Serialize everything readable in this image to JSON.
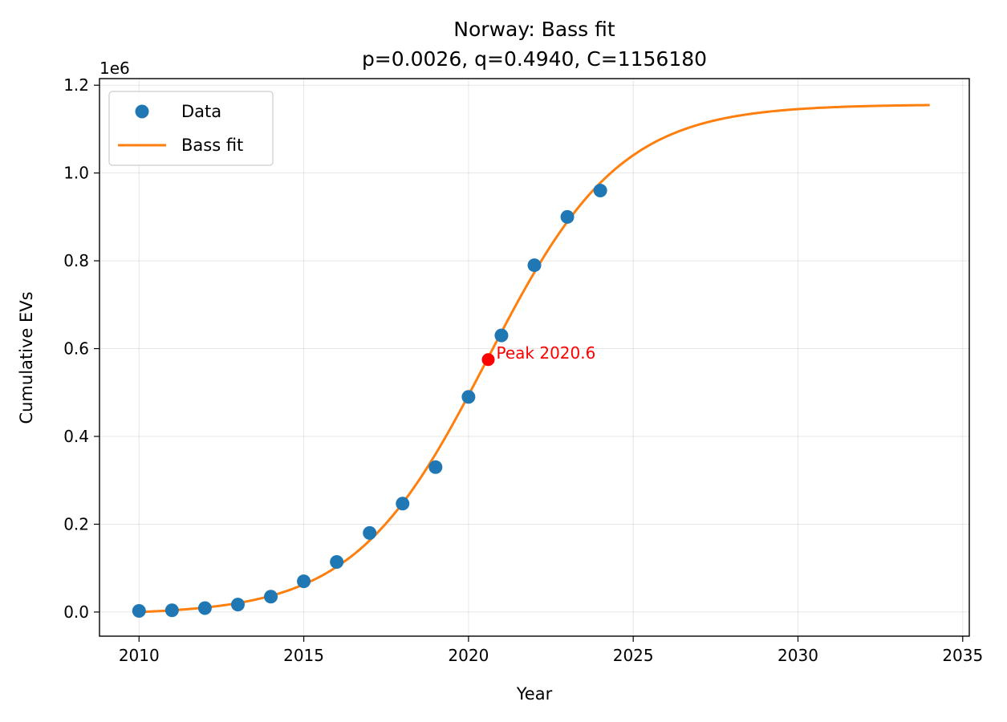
{
  "chart_data": {
    "type": "scatter",
    "title": "Norway: Bass fit",
    "subtitle": "p=0.0026, q=0.4940, C=1156180",
    "xlabel": "Year",
    "ylabel": "Cumulative EVs",
    "y_offset_label": "1e6",
    "xlim": [
      2008.8,
      2035.2
    ],
    "ylim": [
      -55000,
      1215000
    ],
    "x_ticks": [
      2010,
      2015,
      2020,
      2025,
      2030,
      2035
    ],
    "y_ticks": [
      0,
      200000,
      400000,
      600000,
      800000,
      1000000,
      1200000
    ],
    "y_tick_labels": [
      "0.0",
      "0.2",
      "0.4",
      "0.6",
      "0.8",
      "1.0",
      "1.2"
    ],
    "grid": true,
    "legend_position": "top-left",
    "series": [
      {
        "name": "Data",
        "kind": "scatter",
        "color": "#1f77b4",
        "x": [
          2010,
          2011,
          2012,
          2013,
          2014,
          2015,
          2016,
          2017,
          2018,
          2019,
          2020,
          2021,
          2022,
          2023,
          2024
        ],
        "y": [
          2500,
          4000,
          9000,
          17000,
          35000,
          70000,
          114000,
          180000,
          247000,
          330000,
          490000,
          630000,
          790000,
          900000,
          960000
        ]
      },
      {
        "name": "Bass fit",
        "kind": "line",
        "color": "#ff7f0e",
        "p": 0.0026,
        "q": 0.494,
        "C": 1156180,
        "x_start": 2010,
        "x_end": 2034
      }
    ],
    "annotations": [
      {
        "text": "Peak 2020.6",
        "x": 2020.6,
        "y": 575000,
        "color": "#ff0000"
      }
    ]
  }
}
